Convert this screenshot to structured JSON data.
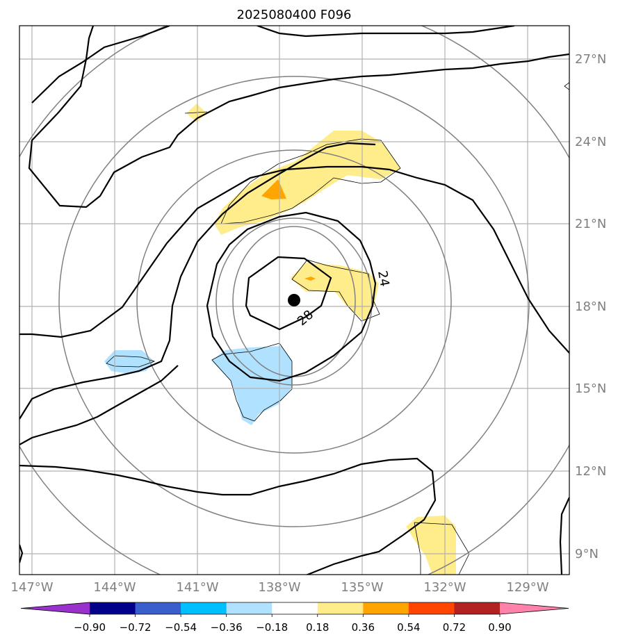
{
  "title": "2025080400 F096",
  "map": {
    "lon_range": [
      -148,
      -128
    ],
    "lat_range": [
      8,
      28
    ],
    "lon_ticks": [
      {
        "value": -147,
        "label": "147°W"
      },
      {
        "value": -144,
        "label": "144°W"
      },
      {
        "value": -141,
        "label": "141°W"
      },
      {
        "value": -138,
        "label": "138°W"
      },
      {
        "value": -135,
        "label": "135°W"
      },
      {
        "value": -132,
        "label": "132°W"
      },
      {
        "value": -129,
        "label": "129°W"
      }
    ],
    "lat_ticks": [
      {
        "value": 9,
        "label": "9°N"
      },
      {
        "value": 12,
        "label": "12°N"
      },
      {
        "value": 15,
        "label": "15°N"
      },
      {
        "value": 18,
        "label": "18°N"
      },
      {
        "value": 21,
        "label": "21°N"
      },
      {
        "value": 24,
        "label": "24°N"
      },
      {
        "value": 27,
        "label": "27°N"
      }
    ],
    "grid": true,
    "storm_center": {
      "lon": -137.5,
      "lat": 18.2
    },
    "contour_labels": [
      {
        "text": "24",
        "lon": -134.4,
        "lat": 18.9,
        "rotate": 80
      },
      {
        "text": "28",
        "lon": -137.1,
        "lat": 17.6,
        "rotate": -40
      }
    ]
  },
  "colorbar": {
    "colors": [
      "#9932cc",
      "#00008b",
      "#3a5fcd",
      "#00bfff",
      "#b0e2ff",
      "#ffffff",
      "#ffec8b",
      "#ffa500",
      "#ff4500",
      "#b22222",
      "#ff82ab"
    ],
    "tick_labels": [
      "−0.90",
      "−0.72",
      "−0.54",
      "−0.36",
      "−0.18",
      "0.18",
      "0.36",
      "0.54",
      "0.72",
      "0.90"
    ],
    "extend": "both"
  }
}
